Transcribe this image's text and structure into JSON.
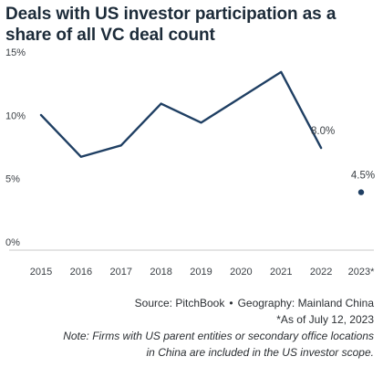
{
  "chart_data": {
    "type": "line",
    "title": "Deals with US investor participation as a share of all VC deal count",
    "categories": [
      "2015",
      "2016",
      "2017",
      "2018",
      "2019",
      "2020",
      "2021",
      "2022",
      "2023*"
    ],
    "series": [
      {
        "values": [
          10.6,
          7.3,
          8.2,
          11.5,
          10.0,
          12.0,
          14.0,
          8.0,
          4.5
        ]
      }
    ],
    "data_labels": [
      {
        "category": "2022",
        "text": "8.0%"
      },
      {
        "category": "2023*",
        "text": "4.5%"
      }
    ],
    "y_ticks": [
      "0%",
      "5%",
      "10%",
      "15%"
    ],
    "y_tick_values": [
      0,
      5,
      10,
      15
    ],
    "ylim": [
      0,
      15
    ],
    "grid": false,
    "line_color": "#1f3f63",
    "last_point_disconnected": true
  },
  "footer": {
    "source": "Source: PitchBook",
    "separator": "•",
    "geography": "Geography: Mainland China",
    "as_of": "*As of July 12, 2023",
    "note_line1": "Note: Firms with US parent entities or secondary office locations",
    "note_line2": "in China are included in the US investor scope."
  }
}
